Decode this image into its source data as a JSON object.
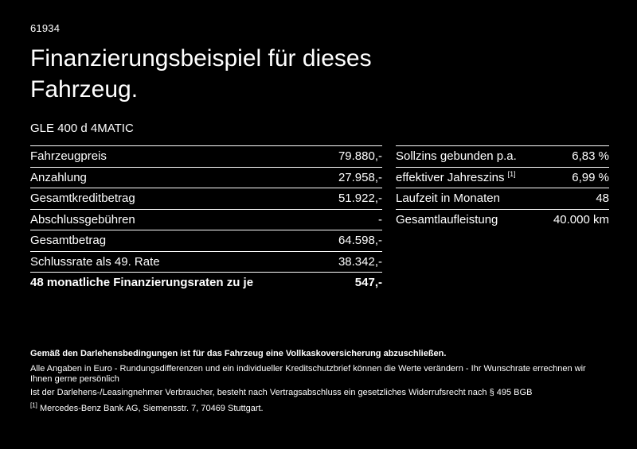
{
  "page": {
    "id_number": "61934",
    "title": "Finanzierungsbeispiel für dieses\nFahrzeug.",
    "vehicle": "GLE 400 d 4MATIC"
  },
  "finance_table_left": {
    "rows": [
      {
        "label": "Fahrzeugpreis",
        "value": "79.880,-"
      },
      {
        "label": "Anzahlung",
        "value": "27.958,-"
      },
      {
        "label": "Gesamtkreditbetrag",
        "value": "51.922,-"
      },
      {
        "label": "Abschlussgebühren",
        "value": "-"
      },
      {
        "label": "Gesamtbetrag",
        "value": "64.598,-"
      },
      {
        "label": "Schlussrate als 49. Rate",
        "value": "38.342,-"
      },
      {
        "label": "48 monatliche Finanzierungsraten zu je",
        "value": "547,-"
      }
    ]
  },
  "finance_table_right": {
    "rows": [
      {
        "label": "Sollzins gebunden p.a.",
        "value": "6,83 %"
      },
      {
        "label": "effektiver Jahreszins",
        "superscript": "[1]",
        "value": "6,99 %"
      },
      {
        "label": "Laufzeit in Monaten",
        "value": "48"
      },
      {
        "label": "Gesamtlaufleistung",
        "value": "40.000 km"
      }
    ]
  },
  "footnotes": {
    "bold_note": "Gemäß den Darlehensbedingungen ist für das Fahrzeug eine Vollkaskoversicherung abzuschließen.",
    "note1": "Alle Angaben in Euro - Rundungsdifferenzen und ein individueller Kreditschutzbrief können die Werte verändern - Ihr Wunschrate errechnen wir Ihnen gerne persönlich",
    "note2": "Ist der Darlehens-/Leasingnehmer Verbraucher, besteht nach Vertragsabschluss ein gesetzliches Widerrufsrecht nach § 495 BGB",
    "reference_marker": "[1]",
    "reference": "Mercedes-Benz Bank AG, Siemensstr. 7, 70469 Stuttgart."
  }
}
